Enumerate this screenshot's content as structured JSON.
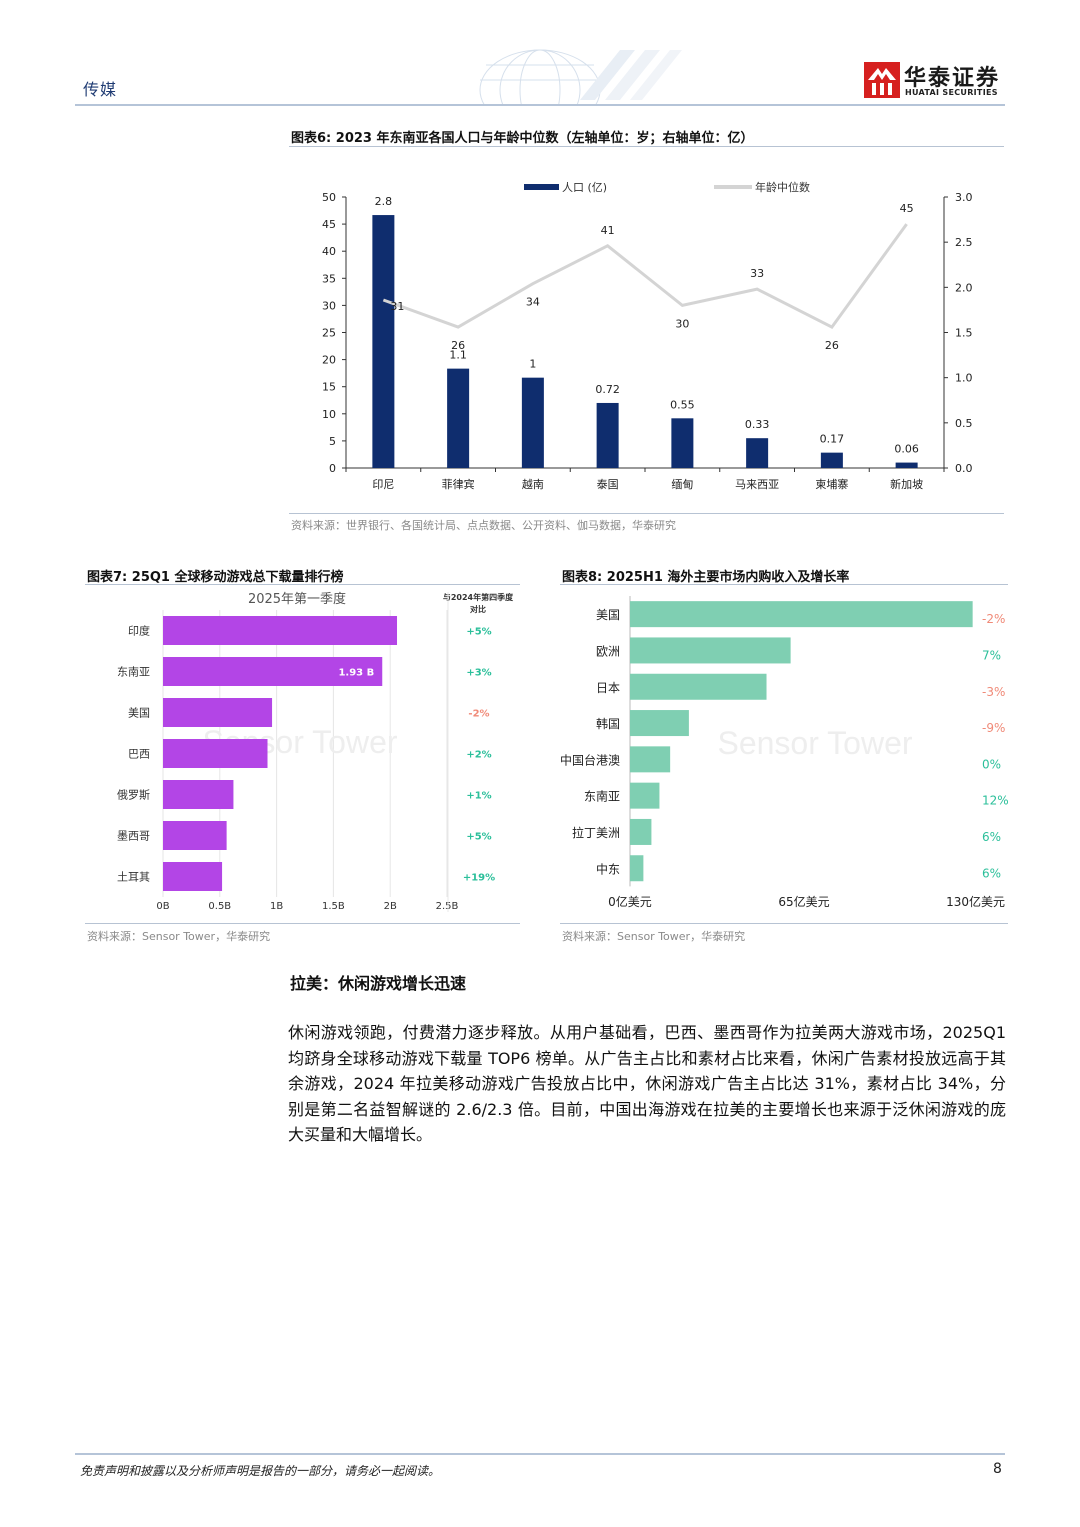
{
  "header": {
    "sector": "传媒",
    "logo_cn": "华泰证券",
    "logo_en": "HUATAI SECURITIES"
  },
  "fig6": {
    "title": "图表6:  2023 年东南亚各国人口与年龄中位数（左轴单位：岁；右轴单位：亿）",
    "source": "资料来源：世界银行、各国统计局、点点数据、公开资料、伽马数据，华泰研究"
  },
  "fig7": {
    "title": "图表7:  25Q1 全球移动游戏总下载量排行榜",
    "source": "资料来源：Sensor Tower，华泰研究",
    "inner_title": "2025年第一季度",
    "change_header_1": "与2024年第四季度",
    "change_header_2": "对比",
    "value_label": "1.93 B",
    "watermark": "Sensor Tower"
  },
  "fig8": {
    "title": "图表8:  2025H1 海外主要市场内购收入及增长率",
    "source": "资料来源：Sensor Tower，华泰研究",
    "watermark": "Sensor Tower"
  },
  "body": {
    "heading": "拉美：休闲游戏增长迅速",
    "paragraph": "休闲游戏领跑，付费潜力逐步释放。从用户基础看，巴西、墨西哥作为拉美两大游戏市场，2025Q1 均跻身全球移动游戏下载量 TOP6 榜单。从广告主占比和素材占比来看，休闲广告素材投放远高于其余游戏，2024 年拉美移动游戏广告投放占比中，休闲游戏广告主占比达 31%，素材占比 34%，分别是第二名益智解谜的 2.6/2.3 倍。目前，中国出海游戏在拉美的主要增长也来源于泛休闲游戏的庞大买量和大幅增长。"
  },
  "footer": {
    "disclaimer": "免责声明和披露以及分析师声明是报告的一部分，请务必一起阅读。",
    "page": "8"
  },
  "chart_data": [
    {
      "type": "bar",
      "categories": [
        "印尼",
        "菲律宾",
        "越南",
        "泰国",
        "缅甸",
        "马来西亚",
        "柬埔寨",
        "新加坡"
      ],
      "series": [
        {
          "name": "人口 (亿)",
          "type": "bar",
          "axis": "right",
          "values": [
            2.8,
            1.1,
            1,
            0.72,
            0.55,
            0.33,
            0.17,
            0.06
          ],
          "color": "#0f2d6e"
        },
        {
          "name": "年龄中位数",
          "type": "line",
          "axis": "left",
          "values": [
            31,
            26,
            34,
            41,
            30,
            33,
            26,
            45
          ],
          "color": "#d4d4d4"
        }
      ],
      "left_ticks": [
        "0",
        "5",
        "10",
        "15",
        "20",
        "25",
        "30",
        "35",
        "40",
        "45",
        "50"
      ],
      "right_ticks": [
        "0.0",
        "0.5",
        "1.0",
        "1.5",
        "2.0",
        "2.5",
        "3.0"
      ],
      "ylim_left": [
        0,
        50
      ],
      "ylim_right": [
        0,
        3
      ],
      "legend": "top"
    },
    {
      "type": "bar",
      "orientation": "horizontal",
      "categories": [
        "印度",
        "东南亚",
        "美国",
        "巴西",
        "俄罗斯",
        "墨西哥",
        "土耳其"
      ],
      "values": [
        2.06,
        1.93,
        0.96,
        0.92,
        0.62,
        0.56,
        0.52
      ],
      "changes": [
        "+5%",
        "+3%",
        "-2%",
        "+2%",
        "+1%",
        "+5%",
        "+19%"
      ],
      "x_ticks": [
        "0B",
        "0.5B",
        "1B",
        "1.5B",
        "2B",
        "2.5B"
      ],
      "xlim": [
        0,
        2.5
      ],
      "colors": {
        "bar": "#b345e6",
        "positive": "#2bbf9a",
        "negative": "#f08a78"
      }
    },
    {
      "type": "bar",
      "orientation": "horizontal",
      "categories": [
        "美国",
        "欧洲",
        "日本",
        "韩国",
        "中国台港澳",
        "东南亚",
        "拉丁美洲",
        "中东"
      ],
      "values": [
        128,
        60,
        51,
        22,
        15,
        11,
        8,
        5
      ],
      "growth": [
        "-2%",
        "7%",
        "-3%",
        "-9%",
        "0%",
        "12%",
        "6%",
        "6%"
      ],
      "x_ticks": [
        "0亿美元",
        "65亿美元",
        "130亿美元"
      ],
      "xlim": [
        0,
        130
      ],
      "colors": {
        "bar": "#7fcfb2",
        "positive": "#2bbf9a",
        "negative": "#f08a78"
      }
    }
  ]
}
